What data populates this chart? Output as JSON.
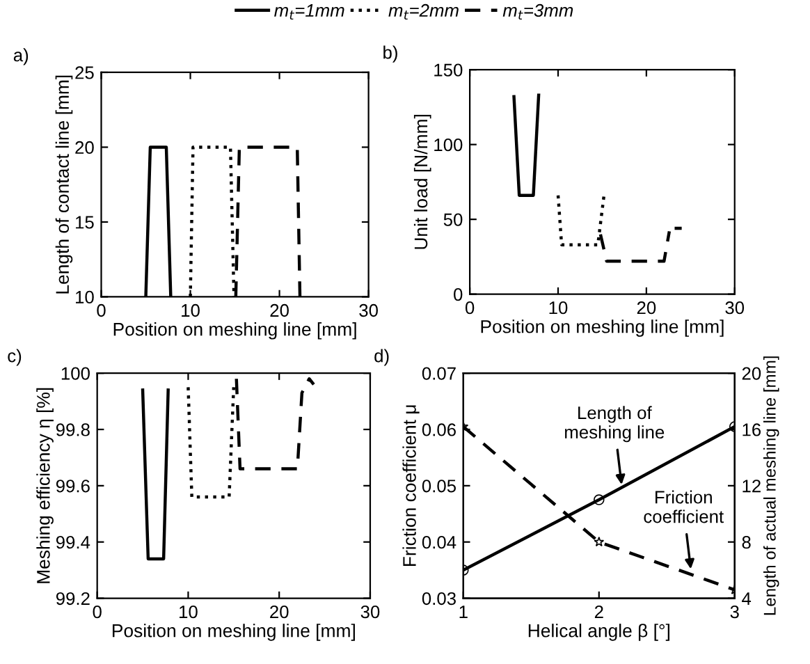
{
  "chart_data": [
    {
      "type": "line",
      "annotations": [
        "a)"
      ],
      "xlabel": "Position on meshing line [mm]",
      "ylabel": "Length of contact line [mm]",
      "xlim": [
        0,
        30
      ],
      "ylim": [
        10,
        25
      ],
      "xticks": [
        0,
        10,
        20,
        30
      ],
      "yticks": [
        10,
        15,
        20,
        25
      ],
      "legend": "top",
      "grid": false,
      "series": [
        {
          "name": "m$_{t}$=1mm",
          "color": "#000000",
          "line_style": "solid",
          "x": [
            5,
            5.5,
            7.3,
            7.8
          ],
          "values": [
            10,
            20,
            20,
            10
          ]
        },
        {
          "name": "m$_{t}$=2mm",
          "color": "#000000",
          "line_style": "dotted",
          "x": [
            10,
            10.3,
            14.5,
            14.9
          ],
          "values": [
            10,
            20,
            20,
            10
          ]
        },
        {
          "name": "m$_{t}$=3mm",
          "color": "#000000",
          "line_style": "dashed",
          "x": [
            15.1,
            15.5,
            22,
            22.3
          ],
          "values": [
            10,
            20,
            20,
            10
          ]
        }
      ]
    },
    {
      "type": "line",
      "annotations": [
        "b)"
      ],
      "xlabel": "Position on meshing line [mm]",
      "ylabel": "Unit load [N/mm]",
      "xlim": [
        0,
        30
      ],
      "ylim": [
        0,
        150
      ],
      "xticks": [
        0,
        10,
        20,
        30
      ],
      "yticks": [
        0,
        50,
        100,
        150
      ],
      "grid": false,
      "series": [
        {
          "color": "#000000",
          "line_style": "solid",
          "x": [
            5,
            5.6,
            7.2,
            7.8
          ],
          "values": [
            132,
            66,
            66,
            133
          ]
        },
        {
          "color": "#000000",
          "line_style": "dotted",
          "x": [
            10,
            10.4,
            14.5,
            15.2,
            15.5
          ],
          "values": [
            66,
            33,
            33,
            66,
            67
          ]
        },
        {
          "color": "#000000",
          "line_style": "dashed",
          "x": [
            14.8,
            15.5,
            22,
            22.6,
            null,
            23.2,
            24
          ],
          "values": [
            40,
            22,
            22,
            42,
            null,
            44,
            44
          ]
        }
      ]
    },
    {
      "type": "line",
      "annotations": [
        "c)"
      ],
      "xlabel": "Position on meshing line [mm]",
      "ylabel": "Meshing efficiency η [%]",
      "xlim": [
        0,
        30
      ],
      "ylim": [
        99.2,
        100
      ],
      "xticks": [
        0,
        10,
        20,
        30
      ],
      "yticks": [
        99.2,
        99.4,
        99.6,
        99.8,
        100
      ],
      "grid": false,
      "series": [
        {
          "color": "#000000",
          "line_style": "solid",
          "x": [
            5,
            5.6,
            7.3,
            7.8
          ],
          "values": [
            99.94,
            99.34,
            99.34,
            99.94
          ]
        },
        {
          "color": "#000000",
          "line_style": "dotted",
          "x": [
            10,
            10.4,
            14.5,
            15
          ],
          "values": [
            99.95,
            99.56,
            99.56,
            99.95
          ]
        },
        {
          "color": "#000000",
          "line_style": "dashed",
          "x": [
            15.3,
            15.7,
            22,
            22.5,
            23.3,
            23.8
          ],
          "values": [
            99.98,
            99.66,
            99.66,
            99.93,
            99.98,
            99.96
          ]
        }
      ]
    },
    {
      "type": "line",
      "annotations": [
        "d)",
        {
          "text": "Length of\nmeshing line",
          "x": 2.17,
          "y": 0.0495
        },
        {
          "text": "Friction\ncoefficient",
          "x": 2.68,
          "y": 0.0345
        }
      ],
      "xlabel": "Helical angle β [°]",
      "ylabel": "Friction coefficient μ",
      "y2label": "Length of actual meshing line [mm]",
      "xlim": [
        1,
        3
      ],
      "ylim": [
        0.03,
        0.07
      ],
      "xticks": [
        1,
        2,
        3
      ],
      "yticks": [
        0.03,
        0.04,
        0.05,
        0.06,
        0.07
      ],
      "y2lim": [
        4,
        20
      ],
      "y2ticks": [
        4,
        8,
        12,
        16,
        20
      ],
      "grid": false,
      "series": [
        {
          "color": "#000000",
          "line_style": "dashed",
          "marker": "star",
          "x": [
            1,
            2,
            3
          ],
          "values": [
            0.0605,
            0.04,
            0.0315
          ]
        },
        {
          "color": "#000000",
          "line_style": "solid",
          "marker": "circle",
          "axis": "y2",
          "x": [
            1,
            2,
            3
          ],
          "values": [
            6.0,
            11.0,
            16.2
          ]
        }
      ]
    }
  ]
}
